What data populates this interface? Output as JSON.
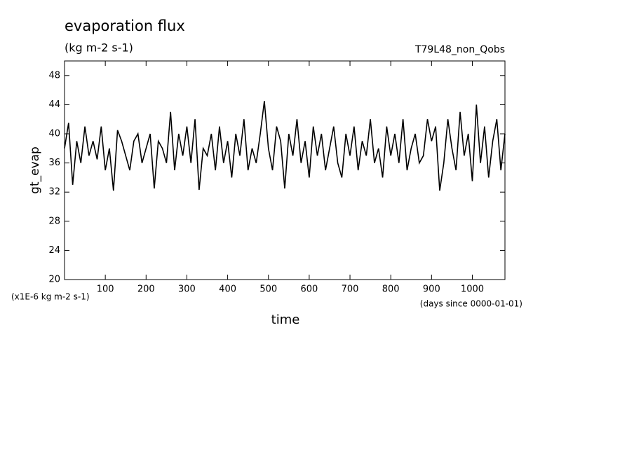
{
  "chart_data": {
    "type": "line",
    "title": "evaporation flux",
    "subtitle": "(kg m-2 s-1)",
    "run_label": "T79L48_non_Qobs",
    "y_label": "gt_evap",
    "x_label": "time",
    "y_units": "(x1E-6 kg m-2 s-1)",
    "x_units": "(days since 0000-01-01)",
    "x": [
      0,
      10,
      20,
      30,
      40,
      50,
      60,
      70,
      80,
      90,
      100,
      110,
      120,
      130,
      140,
      150,
      160,
      170,
      180,
      190,
      200,
      210,
      220,
      230,
      240,
      250,
      260,
      270,
      280,
      290,
      300,
      310,
      320,
      330,
      340,
      350,
      360,
      370,
      380,
      390,
      400,
      410,
      420,
      430,
      440,
      450,
      460,
      470,
      480,
      490,
      500,
      510,
      520,
      530,
      540,
      550,
      560,
      570,
      580,
      590,
      600,
      610,
      620,
      630,
      640,
      650,
      660,
      670,
      680,
      690,
      700,
      710,
      720,
      730,
      740,
      750,
      760,
      770,
      780,
      790,
      800,
      810,
      820,
      830,
      840,
      850,
      860,
      870,
      880,
      890,
      900,
      910,
      920,
      930,
      940,
      950,
      960,
      970,
      980,
      990,
      1000,
      1010,
      1020,
      1030,
      1040,
      1050,
      1060,
      1070,
      1080
    ],
    "series": [
      {
        "color": "#000000",
        "values": [
          38,
          41.5,
          33,
          39,
          36,
          41,
          37,
          39,
          36.5,
          41,
          35,
          38,
          32.2,
          40.5,
          39,
          37,
          35,
          39,
          40,
          36,
          38,
          40,
          32.5,
          39,
          38,
          36,
          43,
          35,
          40,
          37,
          41,
          36,
          42,
          32.3,
          38,
          37,
          40,
          35,
          41,
          36,
          39,
          34,
          40,
          37,
          42,
          35,
          38,
          36,
          40,
          44.5,
          38,
          35,
          41,
          39,
          32.5,
          40,
          37,
          42,
          36,
          39,
          34,
          41,
          37,
          40,
          35,
          38,
          41,
          36,
          34,
          40,
          37,
          41,
          35,
          39,
          37,
          42,
          36,
          38,
          34,
          41,
          37,
          40,
          36,
          42,
          35,
          38,
          40,
          36,
          37,
          42,
          39,
          41,
          32.2,
          36,
          42,
          38,
          35,
          43,
          37,
          40,
          33.5,
          44,
          36,
          41,
          34,
          39,
          42,
          35,
          40
        ]
      }
    ],
    "xlim": [
      0,
      1080
    ],
    "ylim": [
      20,
      50
    ],
    "xticks": [
      100,
      200,
      300,
      400,
      500,
      600,
      700,
      800,
      900,
      1000
    ],
    "yticks": [
      20,
      24,
      28,
      32,
      36,
      40,
      44,
      48
    ]
  }
}
